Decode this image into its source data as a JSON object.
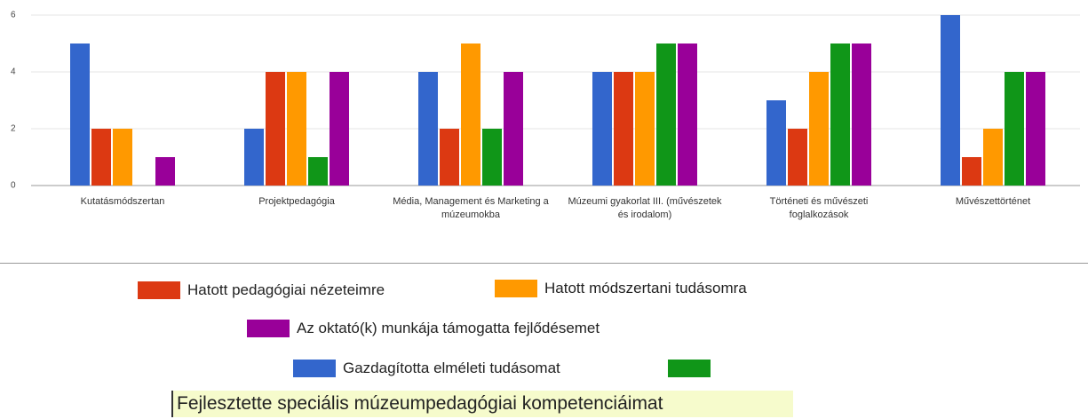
{
  "chart_data": {
    "type": "bar",
    "categories": [
      "Kutatásmódszertan",
      "Projektpedagógia",
      "Média, Management és Marketing a múzeumokba",
      "Múzeumi gyakorlat III. (művészetek és irodalom)",
      "Történeti és művészeti foglalkozások",
      "Művészettörténet"
    ],
    "series": [
      {
        "name": "Gazdagította elméleti tudásomat",
        "color": "#3366cc",
        "values": [
          5,
          2,
          4,
          4,
          3,
          6
        ]
      },
      {
        "name": "Hatott pedagógiai nézeteimre",
        "color": "#dc3912",
        "values": [
          2,
          4,
          2,
          4,
          2,
          1
        ]
      },
      {
        "name": "Hatott módszertani tudásomra",
        "color": "#ff9900",
        "values": [
          2,
          4,
          5,
          4,
          4,
          2
        ]
      },
      {
        "name": "Fejlesztette speciális múzeumpedagógiai kompetenciáimat",
        "color": "#109618",
        "values": [
          0,
          1,
          2,
          5,
          5,
          4
        ]
      },
      {
        "name": "Az oktató(k) munkája támogatta fejlődésemet",
        "color": "#990099",
        "values": [
          1,
          4,
          4,
          5,
          5,
          4
        ]
      }
    ],
    "ylim": [
      0,
      6
    ],
    "yticks": [
      0,
      2,
      4,
      6
    ],
    "grid": true
  }
}
